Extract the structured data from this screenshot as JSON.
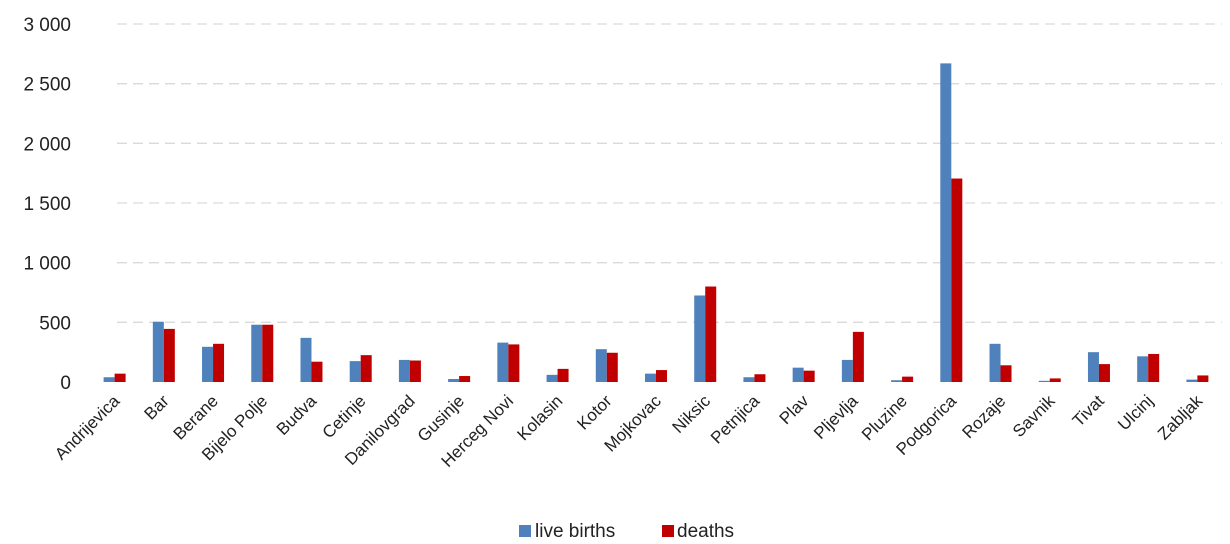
{
  "chart_data": {
    "type": "bar",
    "categories": [
      "Andrijevica",
      "Bar",
      "Berane",
      "Bijelo Polje",
      "Budva",
      "Cetinje",
      "Danilovgrad",
      "Gusinje",
      "Herceg Novi",
      "Kolasin",
      "Kotor",
      "Mojkovac",
      "Niksic",
      "Petnjica",
      "Plav",
      "Pljevlja",
      "Pluzine",
      "Podgorica",
      "Rozaje",
      "Savnik",
      "Tivat",
      "Ulcinj",
      "Zabljak"
    ],
    "series": [
      {
        "name": "live births",
        "color": "#4f81bd",
        "values": [
          40,
          505,
          295,
          480,
          370,
          175,
          185,
          25,
          330,
          60,
          275,
          70,
          725,
          40,
          120,
          185,
          15,
          2670,
          320,
          10,
          250,
          215,
          20
        ]
      },
      {
        "name": "deaths",
        "color": "#c00000",
        "values": [
          70,
          445,
          320,
          480,
          170,
          225,
          180,
          50,
          315,
          110,
          245,
          100,
          800,
          65,
          95,
          420,
          45,
          1705,
          140,
          30,
          150,
          235,
          55
        ]
      }
    ],
    "yticks": [
      "0",
      "500",
      "1 000",
      "1 500",
      "2 000",
      "2 500",
      "3 000"
    ],
    "ytick_values": [
      0,
      500,
      1000,
      1500,
      2000,
      2500,
      3000
    ],
    "ylim": [
      0,
      3000
    ],
    "grid": true,
    "legend_position": "bottom"
  }
}
